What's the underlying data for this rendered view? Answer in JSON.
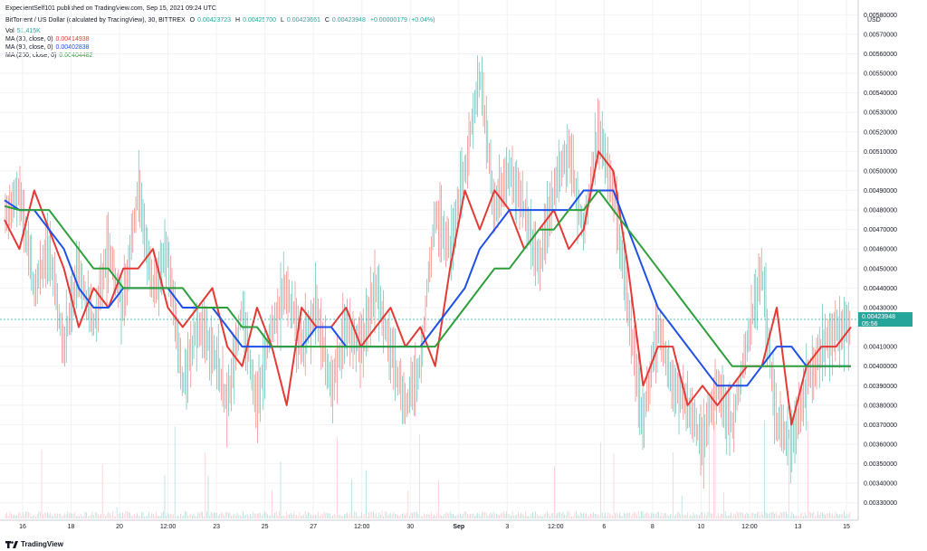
{
  "published": "ExpedientSelf101 published on TradingView.com, Sep 15, 2021 09:24 UTC",
  "symbol": {
    "name": "BitTorrent / US Dollar (calculated by TradingView), 30, BITTREX",
    "o_label": "O",
    "o": "0.00423723",
    "h_label": "H",
    "h": "0.00425700",
    "l_label": "L",
    "l": "0.00423661",
    "c_label": "C",
    "c": "0.00423948",
    "change": "+0.00000179 (+0.04%)"
  },
  "indicators": [
    {
      "label": "Vol",
      "value": "51.415K",
      "color": "#26a69a"
    },
    {
      "label": "MA (30, close, 0)",
      "value": "0.00414938",
      "color": "#e53935"
    },
    {
      "label": "MA (90, close, 0)",
      "value": "0.00402838",
      "color": "#1e50e6"
    },
    {
      "label": "MA (200, close, 0)",
      "value": "0.00404482",
      "color": "#2e9e3a"
    }
  ],
  "currency": "USD",
  "brand": "TradingView",
  "price_tag": {
    "value": "0.00423948",
    "countdown": "05:56",
    "color": "#26a69a"
  },
  "chart_data": {
    "type": "line",
    "y_ticks": [
      "0.00580000",
      "0.00570000",
      "0.00560000",
      "0.00550000",
      "0.00540000",
      "0.00530000",
      "0.00520000",
      "0.00510000",
      "0.00500000",
      "0.00490000",
      "0.00480000",
      "0.00470000",
      "0.00460000",
      "0.00450000",
      "0.00440000",
      "0.00430000",
      "0.00420000",
      "0.00410000",
      "0.00400000",
      "0.00390000",
      "0.00380000",
      "0.00370000",
      "0.00360000",
      "0.00350000",
      "0.00340000",
      "0.00330000"
    ],
    "hidden_ticks": [
      "0.00420000"
    ],
    "ylim": [
      0.00322,
      0.00582
    ],
    "x_ticks": [
      "16",
      "18",
      "20",
      "12:00",
      "23",
      "25",
      "27",
      "12:00",
      "30",
      "Sep",
      "3",
      "12:00",
      "6",
      "8",
      "10",
      "12:00",
      "13",
      "15"
    ],
    "x_bold": [
      "Sep"
    ],
    "grid": true,
    "series": [
      {
        "name": "MA (30, close, 0)",
        "color": "#e53935",
        "values": [
          0.00475,
          0.0046,
          0.0049,
          0.0047,
          0.0045,
          0.0042,
          0.0044,
          0.0043,
          0.0045,
          0.0045,
          0.0046,
          0.0043,
          0.0042,
          0.0043,
          0.0044,
          0.0041,
          0.004,
          0.0043,
          0.0041,
          0.0038,
          0.0043,
          0.0042,
          0.0042,
          0.0043,
          0.0041,
          0.0042,
          0.0043,
          0.0041,
          0.0042,
          0.004,
          0.0045,
          0.0049,
          0.0047,
          0.0049,
          0.0048,
          0.0046,
          0.0047,
          0.0048,
          0.0046,
          0.0047,
          0.0051,
          0.005,
          0.0045,
          0.0039,
          0.0041,
          0.0041,
          0.0038,
          0.0039,
          0.0038,
          0.0039,
          0.004,
          0.004,
          0.0043,
          0.0037,
          0.004,
          0.0041,
          0.0041,
          0.0042
        ]
      },
      {
        "name": "MA (90, close, 0)",
        "color": "#1e50e6",
        "values": [
          0.00485,
          0.0048,
          0.0048,
          0.0047,
          0.0046,
          0.0044,
          0.0043,
          0.0043,
          0.0044,
          0.0044,
          0.0044,
          0.0044,
          0.0043,
          0.0043,
          0.0043,
          0.0042,
          0.0041,
          0.0041,
          0.0041,
          0.0041,
          0.0041,
          0.0042,
          0.0042,
          0.0041,
          0.0041,
          0.0041,
          0.0041,
          0.0041,
          0.0041,
          0.0042,
          0.0043,
          0.0044,
          0.0046,
          0.0047,
          0.0048,
          0.0048,
          0.0048,
          0.0048,
          0.0048,
          0.0049,
          0.0049,
          0.0049,
          0.0047,
          0.0045,
          0.0043,
          0.0042,
          0.0041,
          0.004,
          0.0039,
          0.0039,
          0.0039,
          0.004,
          0.0041,
          0.0041,
          0.004,
          0.004,
          0.004,
          0.004
        ]
      },
      {
        "name": "MA (200, close, 0)",
        "color": "#2e9e3a",
        "values": [
          0.00482,
          0.0048,
          0.0048,
          0.0048,
          0.0047,
          0.0046,
          0.0045,
          0.0045,
          0.0044,
          0.0044,
          0.0044,
          0.0044,
          0.0044,
          0.0043,
          0.0043,
          0.0043,
          0.0042,
          0.0042,
          0.0041,
          0.0041,
          0.0041,
          0.0041,
          0.0041,
          0.0041,
          0.0041,
          0.0041,
          0.0041,
          0.0041,
          0.0041,
          0.0041,
          0.0042,
          0.0043,
          0.0044,
          0.0045,
          0.0045,
          0.0046,
          0.0047,
          0.0047,
          0.0048,
          0.0048,
          0.0049,
          0.0048,
          0.0047,
          0.0046,
          0.0045,
          0.0044,
          0.0043,
          0.0042,
          0.0041,
          0.004,
          0.004,
          0.004,
          0.004,
          0.004,
          0.004,
          0.004,
          0.004,
          0.004
        ]
      }
    ],
    "price_path": [
      0.00475,
      0.0049,
      0.0044,
      0.0046,
      0.0041,
      0.0045,
      0.0042,
      0.0046,
      0.0043,
      0.0049,
      0.0044,
      0.0046,
      0.0039,
      0.0042,
      0.0041,
      0.0038,
      0.0043,
      0.0038,
      0.0042,
      0.0044,
      0.0041,
      0.0043,
      0.0039,
      0.0042,
      0.0041,
      0.0044,
      0.0041,
      0.0038,
      0.004,
      0.0048,
      0.0046,
      0.005,
      0.0055,
      0.0048,
      0.005,
      0.0048,
      0.0045,
      0.0049,
      0.0051,
      0.0047,
      0.0052,
      0.0049,
      0.0043,
      0.0037,
      0.0042,
      0.0039,
      0.0038,
      0.0036,
      0.0039,
      0.0037,
      0.0041,
      0.0045,
      0.0037,
      0.0036,
      0.0039,
      0.0041,
      0.0042,
      0.0042
    ]
  }
}
